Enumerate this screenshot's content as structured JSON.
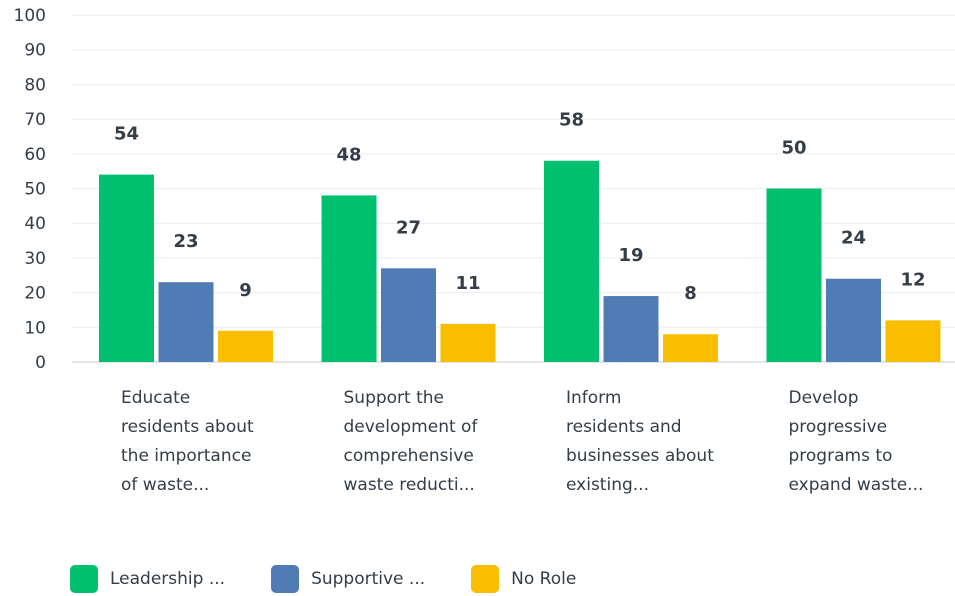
{
  "chart_data": {
    "type": "bar",
    "categories": [
      [
        "Educate",
        "residents about",
        "the importance",
        "of waste..."
      ],
      [
        "Support the",
        "development of",
        "comprehensive",
        "waste reducti..."
      ],
      [
        "Inform",
        "residents and",
        "businesses about",
        "existing..."
      ],
      [
        "Develop",
        "progressive",
        "programs to",
        "expand waste..."
      ]
    ],
    "series": [
      {
        "name": "Leadership ...",
        "color": "#00bf6f",
        "values": [
          54,
          48,
          58,
          50
        ]
      },
      {
        "name": "Supportive ...",
        "color": "#507cb6",
        "values": [
          23,
          27,
          19,
          24
        ]
      },
      {
        "name": "No Role",
        "color": "#f9be00",
        "values": [
          9,
          11,
          8,
          12
        ]
      }
    ],
    "ylim": [
      0,
      100
    ],
    "yticks": [
      0,
      10,
      20,
      30,
      40,
      50,
      60,
      70,
      80,
      90,
      100
    ],
    "grid": true,
    "legend_position": "bottom-left",
    "title": "",
    "xlabel": "",
    "ylabel": ""
  }
}
